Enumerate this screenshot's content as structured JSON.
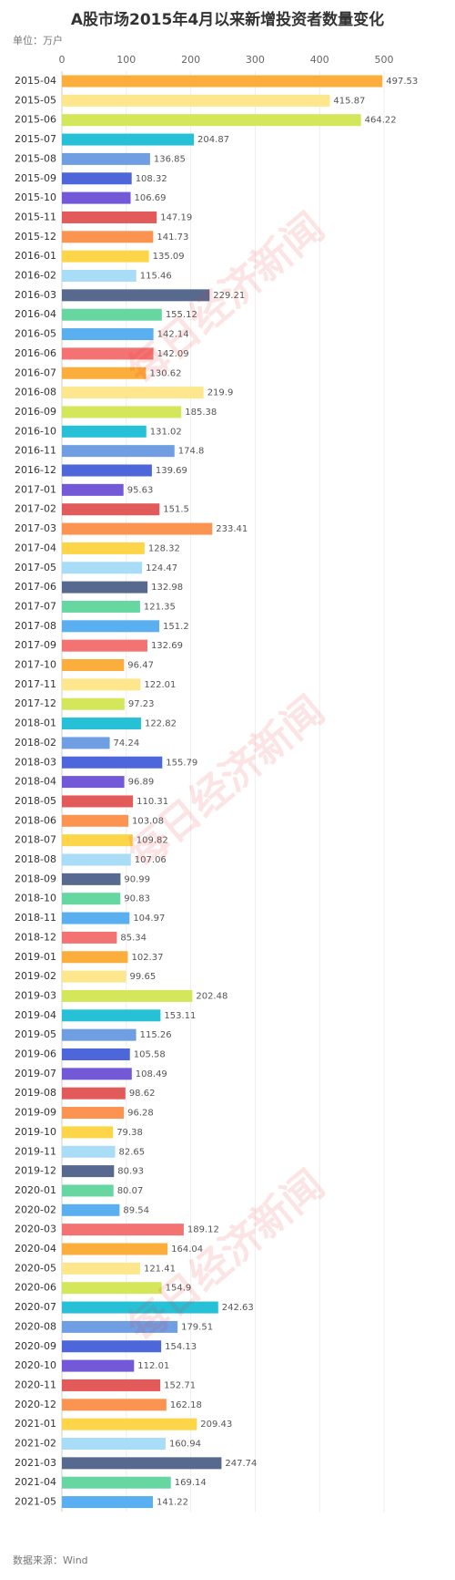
{
  "chart_data": {
    "type": "barh",
    "title": "A股市场2015年4月以来新增投资者数量变化",
    "unit_label": "单位：万户",
    "source": "数据来源：Wind",
    "watermark": "每日经济新闻",
    "categories": [
      "2015-04",
      "2015-05",
      "2015-06",
      "2015-07",
      "2015-08",
      "2015-09",
      "2015-10",
      "2015-11",
      "2015-12",
      "2016-01",
      "2016-02",
      "2016-03",
      "2016-04",
      "2016-05",
      "2016-06",
      "2016-07",
      "2016-08",
      "2016-09",
      "2016-10",
      "2016-11",
      "2016-12",
      "2017-01",
      "2017-02",
      "2017-03",
      "2017-04",
      "2017-05",
      "2017-06",
      "2017-07",
      "2017-08",
      "2017-09",
      "2017-10",
      "2017-11",
      "2017-12",
      "2018-01",
      "2018-02",
      "2018-03",
      "2018-04",
      "2018-05",
      "2018-06",
      "2018-07",
      "2018-08",
      "2018-09",
      "2018-10",
      "2018-11",
      "2018-12",
      "2019-01",
      "2019-02",
      "2019-03",
      "2019-04",
      "2019-05",
      "2019-06",
      "2019-07",
      "2019-08",
      "2019-09",
      "2019-10",
      "2019-11",
      "2019-12",
      "2020-01",
      "2020-02",
      "2020-03",
      "2020-04",
      "2020-05",
      "2020-06",
      "2020-07",
      "2020-08",
      "2020-09",
      "2020-10",
      "2020-11",
      "2020-12",
      "2021-01",
      "2021-02",
      "2021-03",
      "2021-04",
      "2021-05"
    ],
    "values": [
      497.53,
      415.87,
      464.22,
      204.87,
      136.85,
      108.32,
      106.69,
      147.19,
      141.73,
      135.09,
      115.46,
      229.21,
      155.12,
      142.14,
      142.09,
      130.62,
      219.9,
      185.38,
      131.02,
      174.8,
      139.69,
      95.63,
      151.5,
      233.41,
      128.32,
      124.47,
      132.98,
      121.35,
      151.2,
      132.69,
      96.47,
      122.01,
      97.23,
      122.82,
      74.24,
      155.79,
      96.89,
      110.31,
      103.08,
      109.82,
      107.06,
      90.99,
      90.83,
      104.97,
      85.34,
      102.37,
      99.65,
      202.48,
      153.11,
      115.26,
      105.58,
      108.49,
      98.62,
      96.28,
      79.38,
      82.65,
      80.93,
      80.07,
      89.54,
      189.12,
      164.04,
      121.41,
      154.9,
      242.63,
      179.51,
      154.13,
      112.01,
      152.71,
      162.18,
      209.43,
      160.94,
      247.74,
      169.14,
      141.22
    ],
    "palette": [
      "#fbae3c",
      "#fde68c",
      "#d4e65a",
      "#27c1d7",
      "#6f9fe2",
      "#4d66d9",
      "#7359d8",
      "#e35a5a",
      "#fb9450",
      "#fdd549",
      "#a9dcf6",
      "#58698f",
      "#66d7a1",
      "#5aaff0",
      "#f37272"
    ],
    "xlim": [
      0,
      500
    ],
    "xticks": [
      0,
      100,
      200,
      300,
      400,
      500
    ],
    "grid": true
  }
}
